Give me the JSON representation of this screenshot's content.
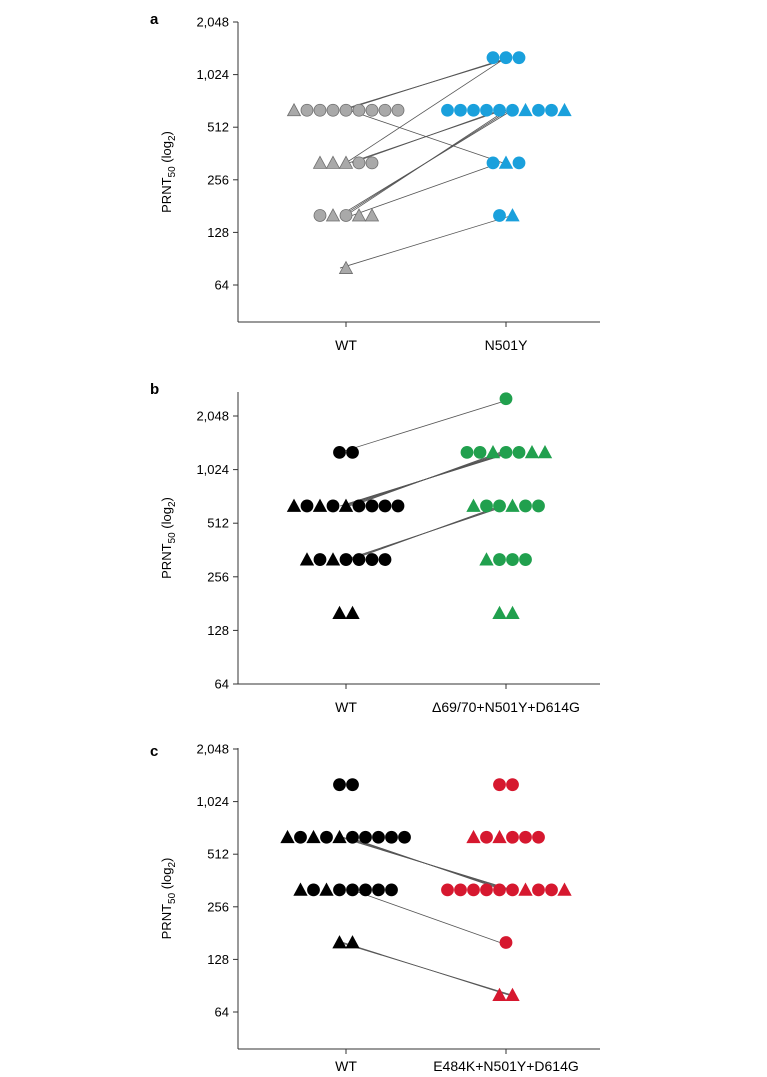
{
  "chart_data": [
    {
      "type": "scatter",
      "panel_label": "a",
      "ylabel": "PRNT",
      "ylabel_sub": "50",
      "ylabel_paren": "(log",
      "ylabel_paren_sub": "2",
      "ylabel_close": ")",
      "y_scale": "log2",
      "ylim": [
        45,
        2048
      ],
      "y_ticks": [
        64,
        128,
        256,
        512,
        1024,
        2048
      ],
      "y_tick_labels": [
        "64",
        "128",
        "256",
        "512",
        "1,024",
        "2,048"
      ],
      "categories": [
        "WT",
        "N501Y"
      ],
      "color": "#a9a9a9",
      "color_2": "#1aa0dc",
      "groups": [
        [
          {
            "y": 640,
            "markers": "TCCCCCCCC"
          },
          {
            "y": 320,
            "markers": "TTTCC"
          },
          {
            "y": 160,
            "markers": "CTCTT"
          },
          {
            "y": 80,
            "markers": "T"
          }
        ],
        [
          {
            "y": 1280,
            "markers": "CCC"
          },
          {
            "y": 640,
            "markers": "CCCCCCTCCT"
          },
          {
            "y": 320,
            "markers": "CTC"
          },
          {
            "y": 160,
            "markers": "CT"
          }
        ]
      ],
      "pairs": [
        [
          640,
          1280
        ],
        [
          640,
          1280
        ],
        [
          320,
          1280
        ],
        [
          640,
          320
        ],
        [
          320,
          640
        ],
        [
          160,
          640
        ],
        [
          160,
          640
        ],
        [
          160,
          640
        ],
        [
          320,
          640
        ],
        [
          160,
          320
        ],
        [
          80,
          160
        ]
      ]
    },
    {
      "type": "scatter",
      "panel_label": "b",
      "ylabel": "PRNT",
      "ylabel_sub": "50",
      "ylabel_paren": "(log",
      "ylabel_paren_sub": "2",
      "ylabel_close": ")",
      "y_scale": "log2",
      "ylim": [
        64,
        2896
      ],
      "y_ticks": [
        64,
        128,
        256,
        512,
        1024,
        2048
      ],
      "y_tick_labels": [
        "64",
        "128",
        "256",
        "512",
        "1,024",
        "2,048"
      ],
      "categories": [
        "WT",
        "Δ69/70+N501Y+D614G"
      ],
      "color": "#000000",
      "color_2": "#21a04e",
      "groups": [
        [
          {
            "y": 1280,
            "markers": "CC"
          },
          {
            "y": 640,
            "markers": "TCTCTCCCC"
          },
          {
            "y": 320,
            "markers": "TCTCCCC"
          },
          {
            "y": 160,
            "markers": "TT"
          }
        ],
        [
          {
            "y": 2560,
            "markers": "C"
          },
          {
            "y": 1280,
            "markers": "CCTCCTT"
          },
          {
            "y": 640,
            "markers": "TCCTCC"
          },
          {
            "y": 320,
            "markers": "TCCC"
          },
          {
            "y": 160,
            "markers": "TT"
          }
        ]
      ],
      "pairs": [
        [
          1280,
          2560
        ],
        [
          640,
          1280
        ],
        [
          640,
          1280
        ],
        [
          640,
          1280
        ],
        [
          640,
          1280
        ],
        [
          640,
          1280
        ],
        [
          640,
          1280
        ],
        [
          320,
          640
        ],
        [
          320,
          640
        ],
        [
          320,
          640
        ]
      ]
    },
    {
      "type": "scatter",
      "panel_label": "c",
      "ylabel": "PRNT",
      "ylabel_sub": "50",
      "ylabel_paren": "(log",
      "ylabel_paren_sub": "2",
      "ylabel_close": ")",
      "y_scale": "log2",
      "ylim": [
        45,
        2048
      ],
      "y_ticks": [
        64,
        128,
        256,
        512,
        1024,
        2048
      ],
      "y_tick_labels": [
        "64",
        "128",
        "256",
        "512",
        "1,024",
        "2,048"
      ],
      "categories": [
        "WT",
        "E484K+N501Y+D614G"
      ],
      "color": "#000000",
      "color_2": "#d6182f",
      "groups": [
        [
          {
            "y": 1280,
            "markers": "CC"
          },
          {
            "y": 640,
            "markers": "TCTCTCCCCC"
          },
          {
            "y": 320,
            "markers": "TCTCCCCC"
          },
          {
            "y": 160,
            "markers": "TT"
          }
        ],
        [
          {
            "y": 1280,
            "markers": "CC"
          },
          {
            "y": 640,
            "markers": "TCTCCC"
          },
          {
            "y": 320,
            "markers": "CCCCCCTCCT"
          },
          {
            "y": 160,
            "markers": "C"
          },
          {
            "y": 80,
            "markers": "TT"
          }
        ]
      ],
      "pairs": [
        [
          640,
          320
        ],
        [
          640,
          320
        ],
        [
          640,
          320
        ],
        [
          640,
          320
        ],
        [
          320,
          160
        ],
        [
          160,
          80
        ],
        [
          160,
          80
        ]
      ]
    }
  ]
}
